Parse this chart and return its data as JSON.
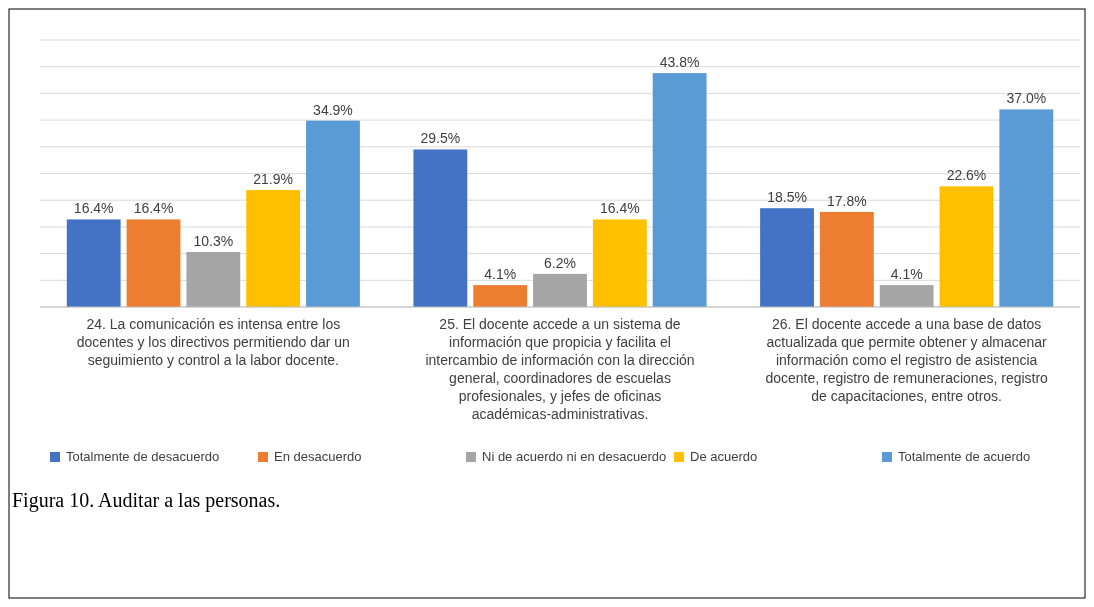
{
  "chart_data": {
    "type": "bar",
    "categories": [
      "24. La comunicación es intensa entre los docentes y los directivos permitiendo dar un seguimiento y control a la labor docente.",
      "25. El docente accede a un sistema de información que propicia y facilita el intercambio de información con la dirección general, coordinadores de escuelas profesionales, y jefes de oficinas académicas-administrativas.",
      "26. El docente accede a una base de datos actualizada que permite obtener y almacenar información como el registro de asistencia docente, registro de remuneraciones, registro de capacitaciones, entre otros."
    ],
    "series": [
      {
        "name": "Totalmente de desacuerdo",
        "color": "#4472c4",
        "values": [
          16.4,
          29.5,
          18.5
        ],
        "value_labels": [
          "16.4%",
          "29.5%",
          "18.5%"
        ]
      },
      {
        "name": "En desacuerdo",
        "color": "#ed7d31",
        "values": [
          16.4,
          4.1,
          17.8
        ],
        "value_labels": [
          "16.4%",
          "4.1%",
          "17.8%"
        ]
      },
      {
        "name": "Ni de acuerdo ni en desacuerdo",
        "color": "#a5a5a5",
        "values": [
          10.3,
          6.2,
          4.1
        ],
        "value_labels": [
          "10.3%",
          "6.2%",
          "4.1%"
        ]
      },
      {
        "name": "De acuerdo",
        "color": "#ffc000",
        "values": [
          21.9,
          16.4,
          22.6
        ],
        "value_labels": [
          "21.9%",
          "16.4%",
          "22.6%"
        ]
      },
      {
        "name": "Totalmente de acuerdo",
        "color": "#5b9bd5",
        "values": [
          34.9,
          43.8,
          37.0
        ],
        "value_labels": [
          "34.9%",
          "43.8%",
          "37.0%"
        ]
      }
    ],
    "ylim": [
      0,
      50
    ],
    "yticks": [
      {
        "value": 0,
        "label": null
      },
      {
        "value": 5,
        "label": null
      },
      {
        "value": 10,
        "label": null
      },
      {
        "value": 15,
        "label": null
      },
      {
        "value": 20,
        "label": null
      },
      {
        "value": 25,
        "label": null
      },
      {
        "value": 30,
        "label": null
      },
      {
        "value": 35,
        "label": null
      },
      {
        "value": 40,
        "label": null
      },
      {
        "value": 45,
        "label": null
      },
      {
        "value": 50,
        "label": null
      }
    ],
    "grid": "y",
    "legend": "bottom",
    "annotations": [
      "Figura 10. Auditar a las personas."
    ]
  }
}
